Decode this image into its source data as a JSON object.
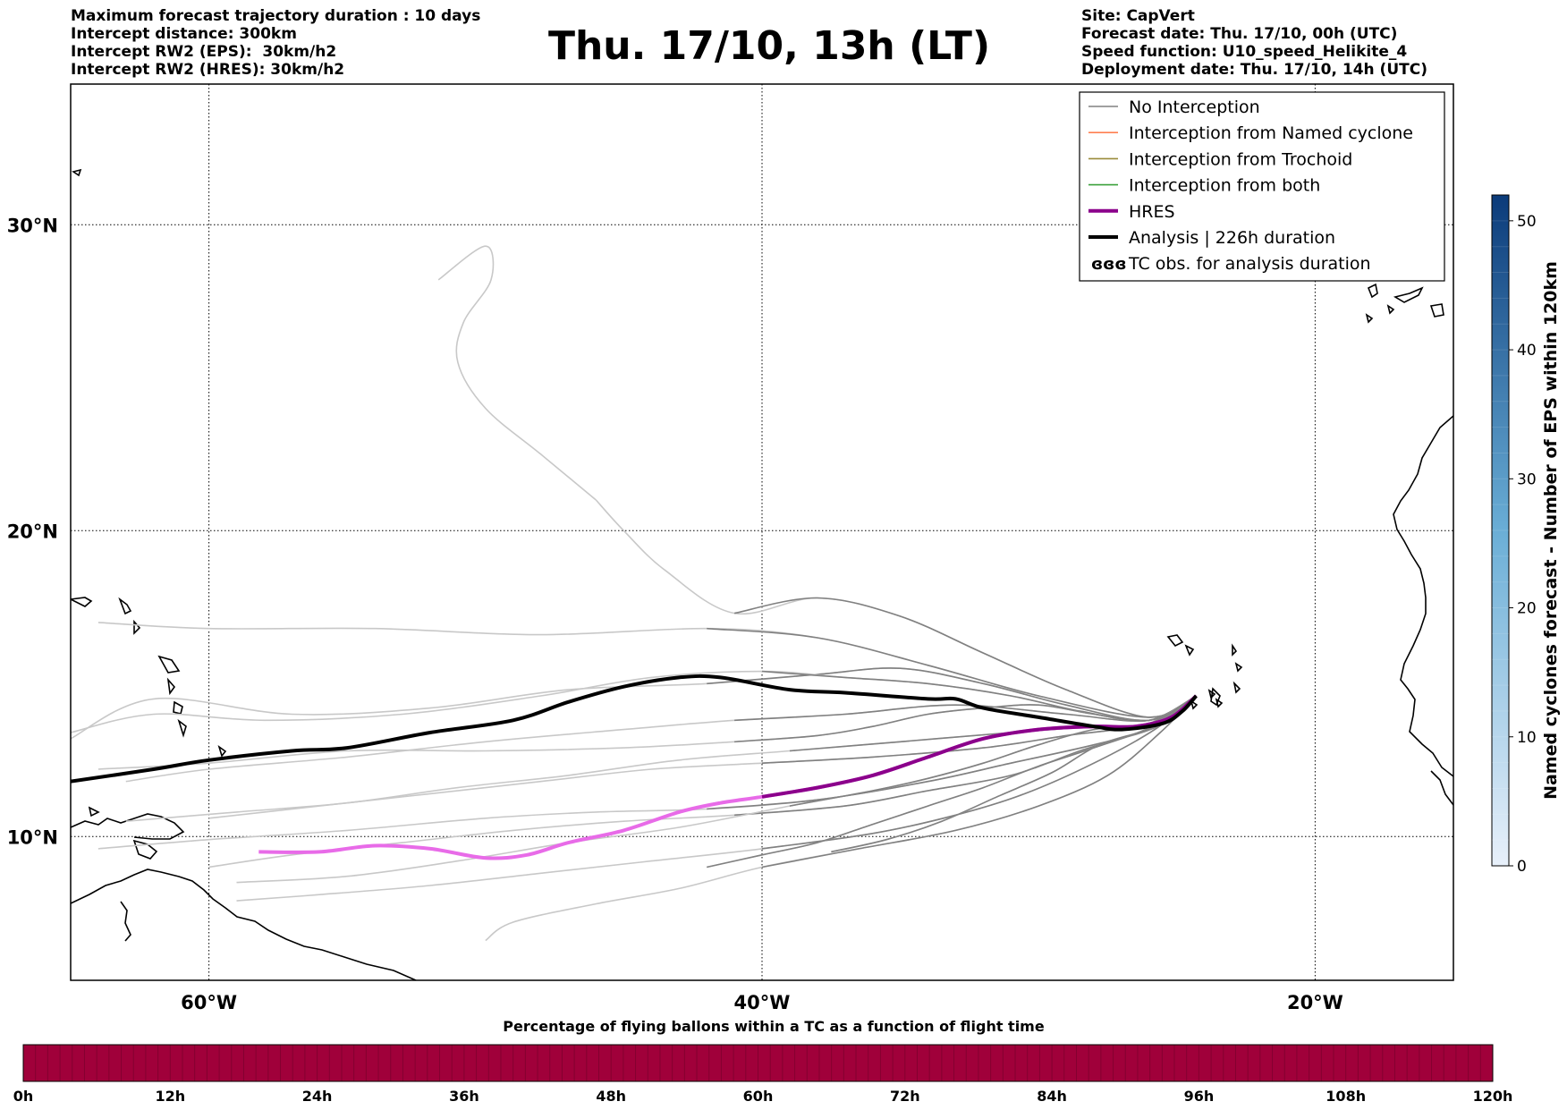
{
  "header": {
    "left_lines": [
      "Maximum forecast trajectory duration : 10 days",
      "Intercept distance: 300km",
      "Intercept RW2 (EPS):  30km/h2",
      "Intercept RW2 (HRES): 30km/h2"
    ],
    "title": "Thu. 17/10, 13h (LT)",
    "right_lines": [
      "Site: CapVert",
      "Forecast date: Thu. 17/10, 00h (UTC)",
      "Speed function: U10_speed_Helikite_4",
      "Deployment date: Thu. 17/10, 14h (UTC)"
    ]
  },
  "map": {
    "lon_range": [
      -65,
      -15
    ],
    "lat_range": [
      5.3,
      34.6
    ],
    "lon_ticks": [
      -60,
      -40,
      -20
    ],
    "lon_tick_labels": [
      "60°W",
      "40°W",
      "20°W"
    ],
    "lat_ticks": [
      10,
      20,
      30
    ],
    "lat_tick_labels": [
      "10°N",
      "20°N",
      "30°N"
    ],
    "grid": true
  },
  "legend": {
    "placement": "top-right",
    "items": [
      {
        "label": "No Interception",
        "color": "#808080",
        "style": "thin"
      },
      {
        "label": "Interception from Named cyclone",
        "color": "#ff7f50",
        "style": "thin"
      },
      {
        "label": "Interception from Trochoid",
        "color": "#9a8b3a",
        "style": "thin"
      },
      {
        "label": "Interception from both",
        "color": "#3aa03a",
        "style": "thin"
      },
      {
        "label": "HRES",
        "color": "#8b008b",
        "style": "thick"
      },
      {
        "label": "Analysis | 226h duration",
        "color": "#000000",
        "style": "thick"
      },
      {
        "label": "TC obs. for analysis duration",
        "color": "#000000",
        "style": "symbol"
      }
    ]
  },
  "colorbar_right": {
    "label": "Named cyclones forecast - Number of EPS within 120km",
    "range": [
      0,
      52
    ],
    "ticks": [
      0,
      10,
      20,
      30,
      40,
      50
    ],
    "color_low": "#e8f0fa",
    "color_high": "#0b3b7a"
  },
  "colorbar_bottom": {
    "label": "Percentage of flying ballons within a TC as a function of flight time",
    "ticks": [
      "0h",
      "12h",
      "24h",
      "36h",
      "48h",
      "60h",
      "72h",
      "84h",
      "96h",
      "108h",
      "120h"
    ],
    "color": "#a0003a"
  },
  "chart_data": {
    "type": "line",
    "x_unit": "longitude (deg, negative = W)",
    "y_unit": "latitude (deg N)",
    "analysis": [
      [
        -65,
        11.8
      ],
      [
        -62,
        12.2
      ],
      [
        -60,
        12.5
      ],
      [
        -57,
        12.8
      ],
      [
        -55,
        12.9
      ],
      [
        -52,
        13.4
      ],
      [
        -49,
        13.8
      ],
      [
        -47,
        14.4
      ],
      [
        -45,
        14.9
      ],
      [
        -43,
        15.2
      ],
      [
        -41.5,
        15.2
      ],
      [
        -39,
        14.8
      ],
      [
        -37,
        14.7
      ],
      [
        -34,
        14.5
      ],
      [
        -33,
        14.5
      ],
      [
        -32,
        14.2
      ],
      [
        -30,
        13.9
      ],
      [
        -28,
        13.6
      ],
      [
        -27,
        13.5
      ],
      [
        -25.5,
        13.7
      ],
      [
        -24.8,
        14.1
      ],
      [
        -24.3,
        14.6
      ]
    ],
    "hres": [
      [
        -58.2,
        9.5
      ],
      [
        -56,
        9.5
      ],
      [
        -54,
        9.7
      ],
      [
        -52,
        9.6
      ],
      [
        -50,
        9.3
      ],
      [
        -48.5,
        9.4
      ],
      [
        -47,
        9.8
      ],
      [
        -45,
        10.2
      ],
      [
        -43,
        10.8
      ],
      [
        -41.5,
        11.1
      ],
      [
        -40,
        11.3
      ],
      [
        -38,
        11.6
      ],
      [
        -36,
        12.0
      ],
      [
        -34,
        12.6
      ],
      [
        -32,
        13.2
      ],
      [
        -30,
        13.5
      ],
      [
        -28,
        13.6
      ],
      [
        -26.5,
        13.6
      ],
      [
        -25.2,
        13.9
      ],
      [
        -24.3,
        14.6
      ]
    ],
    "eps_members": [
      [
        [
          -24.3,
          14.6
        ],
        [
          -26,
          13.8
        ],
        [
          -29,
          14.3
        ],
        [
          -32,
          15.0
        ],
        [
          -35,
          15.5
        ],
        [
          -38,
          15.3
        ],
        [
          -42,
          15.0
        ],
        [
          -47,
          14.8
        ],
        [
          -52,
          14.2
        ],
        [
          -57,
          14.0
        ],
        [
          -62,
          14.5
        ],
        [
          -65,
          13.2
        ]
      ],
      [
        [
          -24.3,
          14.6
        ],
        [
          -26,
          13.9
        ],
        [
          -29,
          14.8
        ],
        [
          -32,
          16.0
        ],
        [
          -35,
          17.2
        ],
        [
          -38,
          17.8
        ],
        [
          -41,
          17.3
        ],
        [
          -43.5,
          18.7
        ],
        [
          -45,
          20.0
        ],
        [
          -46,
          21.0
        ]
      ],
      [
        [
          -46,
          21.0
        ],
        [
          -48,
          22.5
        ],
        [
          -50,
          24.0
        ],
        [
          -51,
          25.5
        ],
        [
          -50.8,
          26.8
        ],
        [
          -49.8,
          28.2
        ],
        [
          -50,
          29.3
        ],
        [
          -51.7,
          28.2
        ]
      ],
      [
        [
          -24.3,
          14.6
        ],
        [
          -26,
          13.9
        ],
        [
          -30,
          14.6
        ],
        [
          -34,
          15.6
        ],
        [
          -38,
          16.5
        ],
        [
          -42,
          16.8
        ],
        [
          -48,
          16.6
        ],
        [
          -54,
          16.8
        ],
        [
          -60,
          16.8
        ],
        [
          -64,
          17.0
        ]
      ],
      [
        [
          -24.3,
          14.6
        ],
        [
          -26,
          13.8
        ],
        [
          -29,
          14.0
        ],
        [
          -33,
          14.3
        ],
        [
          -37,
          14.0
        ],
        [
          -41,
          13.8
        ],
        [
          -45,
          13.5
        ],
        [
          -50,
          13.1
        ],
        [
          -55,
          12.6
        ],
        [
          -60,
          12.2
        ],
        [
          -63,
          11.8
        ]
      ],
      [
        [
          -24.3,
          14.6
        ],
        [
          -26,
          13.7
        ],
        [
          -29,
          13.3
        ],
        [
          -32,
          12.9
        ],
        [
          -36,
          12.6
        ],
        [
          -40,
          12.4
        ],
        [
          -44,
          12.2
        ],
        [
          -48,
          11.8
        ],
        [
          -52,
          11.4
        ],
        [
          -56,
          11.0
        ],
        [
          -60,
          10.6
        ]
      ],
      [
        [
          -24.3,
          14.6
        ],
        [
          -25.8,
          13.6
        ],
        [
          -28.5,
          12.8
        ],
        [
          -31,
          12.0
        ],
        [
          -34,
          11.5
        ],
        [
          -37,
          11.0
        ],
        [
          -41,
          10.7
        ],
        [
          -45,
          10.5
        ],
        [
          -49,
          10.2
        ],
        [
          -53,
          9.8
        ],
        [
          -57,
          9.4
        ],
        [
          -60,
          9.0
        ]
      ],
      [
        [
          -24.3,
          14.6
        ],
        [
          -25.8,
          13.5
        ],
        [
          -28,
          12.4
        ],
        [
          -30.5,
          11.4
        ],
        [
          -33,
          10.7
        ],
        [
          -36,
          10.1
        ],
        [
          -40,
          9.6
        ],
        [
          -44,
          9.2
        ],
        [
          -48,
          8.8
        ],
        [
          -52,
          8.4
        ],
        [
          -56,
          8.1
        ],
        [
          -59,
          7.9
        ]
      ],
      [
        [
          -24.3,
          14.6
        ],
        [
          -25.6,
          13.4
        ],
        [
          -27.5,
          12.0
        ],
        [
          -30,
          11.0
        ],
        [
          -33,
          10.2
        ],
        [
          -36.5,
          9.6
        ],
        [
          -40,
          9.0
        ],
        [
          -43,
          8.3
        ],
        [
          -46,
          7.8
        ],
        [
          -49,
          7.2
        ],
        [
          -50,
          6.6
        ]
      ],
      [
        [
          -24.3,
          14.6
        ],
        [
          -25.7,
          13.6
        ],
        [
          -28,
          13.0
        ],
        [
          -31,
          12.4
        ],
        [
          -34,
          11.8
        ],
        [
          -38,
          11.2
        ],
        [
          -42,
          10.9
        ],
        [
          -46,
          10.8
        ],
        [
          -50,
          10.6
        ],
        [
          -55,
          10.2
        ],
        [
          -60,
          9.9
        ],
        [
          -64,
          9.6
        ]
      ],
      [
        [
          -24.3,
          14.6
        ],
        [
          -26,
          13.8
        ],
        [
          -28,
          14.0
        ],
        [
          -30,
          14.3
        ],
        [
          -32,
          14.2
        ],
        [
          -34,
          14.0
        ],
        [
          -36,
          13.6
        ],
        [
          -38,
          13.3
        ],
        [
          -41,
          13.1
        ],
        [
          -45,
          12.9
        ],
        [
          -50,
          12.8
        ],
        [
          -55,
          12.8
        ],
        [
          -60,
          12.4
        ],
        [
          -64,
          12.2
        ]
      ],
      [
        [
          -24.3,
          14.6
        ],
        [
          -25.9,
          13.7
        ],
        [
          -28,
          13.5
        ],
        [
          -30,
          13.0
        ],
        [
          -32,
          12.4
        ],
        [
          -34,
          11.9
        ],
        [
          -36,
          11.5
        ],
        [
          -39,
          11.0
        ],
        [
          -43,
          10.3
        ],
        [
          -47,
          9.8
        ],
        [
          -51,
          9.2
        ],
        [
          -55,
          8.7
        ],
        [
          -59,
          8.5
        ]
      ],
      [
        [
          -24.3,
          14.6
        ],
        [
          -25.9,
          13.6
        ],
        [
          -28,
          12.9
        ],
        [
          -30,
          12.3
        ],
        [
          -32,
          11.6
        ],
        [
          -34,
          11.0
        ],
        [
          -36,
          10.4
        ],
        [
          -38,
          9.8
        ],
        [
          -40,
          9.4
        ],
        [
          -42,
          9.0
        ]
      ],
      [
        [
          -24.3,
          14.6
        ],
        [
          -26,
          13.8
        ],
        [
          -28.5,
          14.1
        ],
        [
          -31,
          14.6
        ],
        [
          -34,
          15.0
        ],
        [
          -37,
          15.2
        ],
        [
          -40,
          15.4
        ],
        [
          -44,
          15.2
        ],
        [
          -48,
          14.6
        ],
        [
          -53,
          14.0
        ],
        [
          -58,
          13.8
        ],
        [
          -62,
          14.0
        ],
        [
          -65,
          13.4
        ]
      ],
      [
        [
          -24.3,
          14.6
        ],
        [
          -25.8,
          13.6
        ],
        [
          -27.8,
          13.0
        ],
        [
          -29.5,
          12.1
        ],
        [
          -31.5,
          11.3
        ],
        [
          -33.5,
          10.5
        ],
        [
          -35.5,
          9.9
        ],
        [
          -37.5,
          9.5
        ]
      ],
      [
        [
          -24.3,
          14.6
        ],
        [
          -26,
          13.7
        ],
        [
          -28,
          13.6
        ],
        [
          -31,
          13.4
        ],
        [
          -35,
          13.1
        ],
        [
          -39,
          12.8
        ],
        [
          -43,
          12.5
        ],
        [
          -47,
          12.0
        ],
        [
          -51,
          11.6
        ],
        [
          -55,
          11.1
        ],
        [
          -59,
          10.8
        ],
        [
          -63,
          10.5
        ]
      ]
    ]
  }
}
